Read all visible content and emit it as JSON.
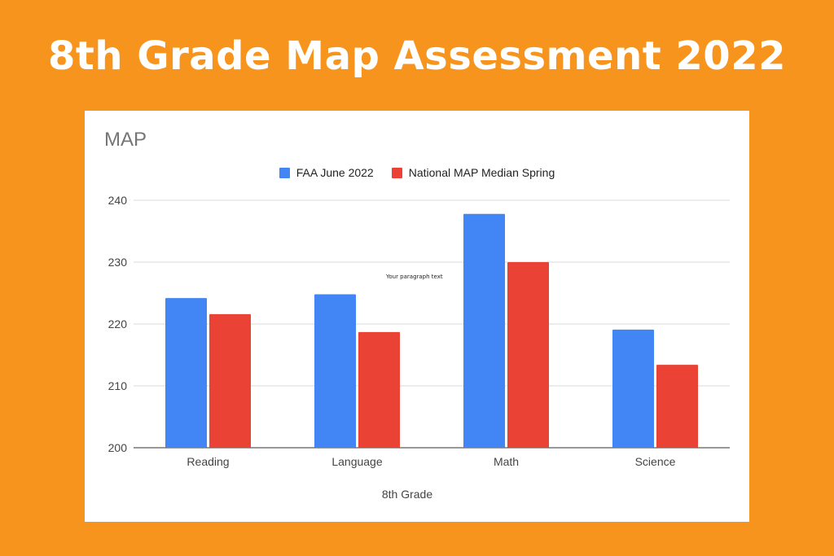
{
  "header": {
    "title": "8th Grade Map Assessment 2022"
  },
  "colors": {
    "background": "#F7941D",
    "card": "#ffffff",
    "series_1": "#4285F4",
    "series_2": "#EA4335",
    "gridline": "#d9d9d9"
  },
  "chart_data": {
    "type": "bar",
    "title": "MAP",
    "xlabel": "8th Grade",
    "ylabel": "",
    "categories": [
      "Reading",
      "Language",
      "Math",
      "Science"
    ],
    "series": [
      {
        "name": "FAA June 2022",
        "values": [
          224.2,
          224.8,
          237.8,
          219.1
        ]
      },
      {
        "name": "National MAP Median Spring",
        "values": [
          221.6,
          218.7,
          230.0,
          213.4
        ]
      }
    ],
    "ylim": [
      200,
      240
    ],
    "yticks": [
      "200",
      "210",
      "220",
      "230",
      "240"
    ],
    "grid": true,
    "legend_position": "top",
    "annotation": "Your paragraph text"
  }
}
